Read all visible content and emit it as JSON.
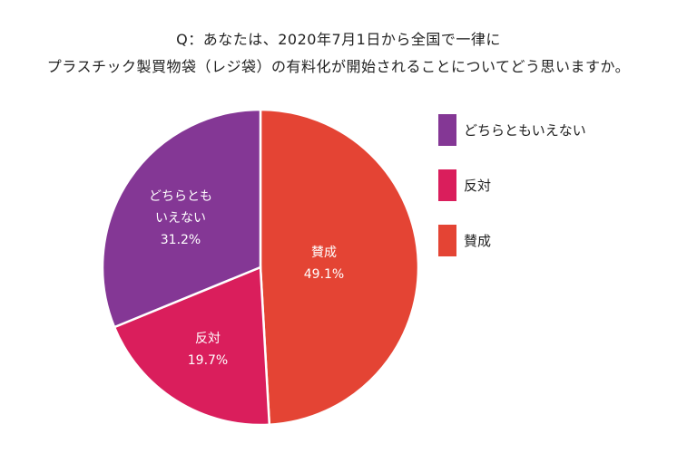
{
  "header": {
    "line1": "Q：あなたは、2020年7月1日から全国で一律に",
    "line2": "プラスチック製買物袋（レジ袋）の有料化が開始されることについてどう思いますか。"
  },
  "chart_data": {
    "type": "pie",
    "categories": [
      "賛成",
      "反対",
      "どちらともいえない"
    ],
    "values": [
      49.1,
      19.7,
      31.2
    ],
    "value_labels": [
      "49.1%",
      "19.7%",
      "31.2%"
    ],
    "slice_labels": [
      [
        "賛成"
      ],
      [
        "反対"
      ],
      [
        "どちらとも",
        "いえない"
      ]
    ],
    "colors": [
      "#e44434",
      "#da1e5c",
      "#843795"
    ],
    "start": "12 o'clock, clockwise",
    "legend_position": "right",
    "legend": [
      {
        "label": "どちらともいえない",
        "color": "#843795"
      },
      {
        "label": "反対",
        "color": "#da1e5c"
      },
      {
        "label": "賛成",
        "color": "#e44434"
      }
    ]
  }
}
